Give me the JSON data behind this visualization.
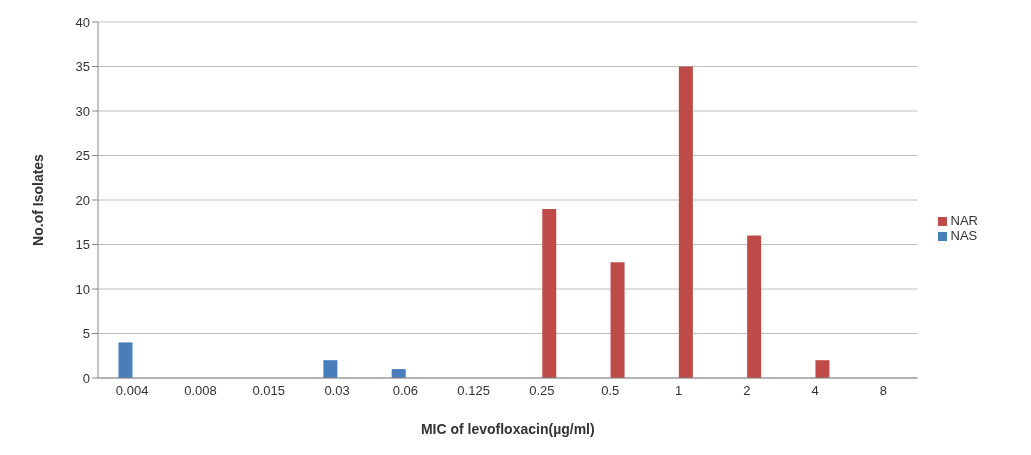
{
  "chart_data": {
    "type": "bar",
    "xlabel": "MIC of levofloxacin(µg/ml)",
    "ylabel": "No.of Isolates",
    "categories": [
      "0.004",
      "0.008",
      "0.015",
      "0.03",
      "0.06",
      "0.125",
      "0.25",
      "0.5",
      "1",
      "2",
      "4",
      "8"
    ],
    "series": [
      {
        "name": "NAS",
        "color": "#4a7ebb",
        "values": [
          4,
          0,
          0,
          2,
          1,
          0,
          0,
          0,
          0,
          0,
          0,
          0
        ]
      },
      {
        "name": "NAR",
        "color": "#be4b48",
        "values": [
          0,
          0,
          0,
          0,
          0,
          0,
          19,
          13,
          35,
          16,
          2,
          0
        ]
      }
    ],
    "ylim": [
      0,
      40
    ],
    "yticks": [
      0,
      5,
      10,
      15,
      20,
      25,
      30,
      35,
      40
    ],
    "grid": "y",
    "legend": "right"
  }
}
